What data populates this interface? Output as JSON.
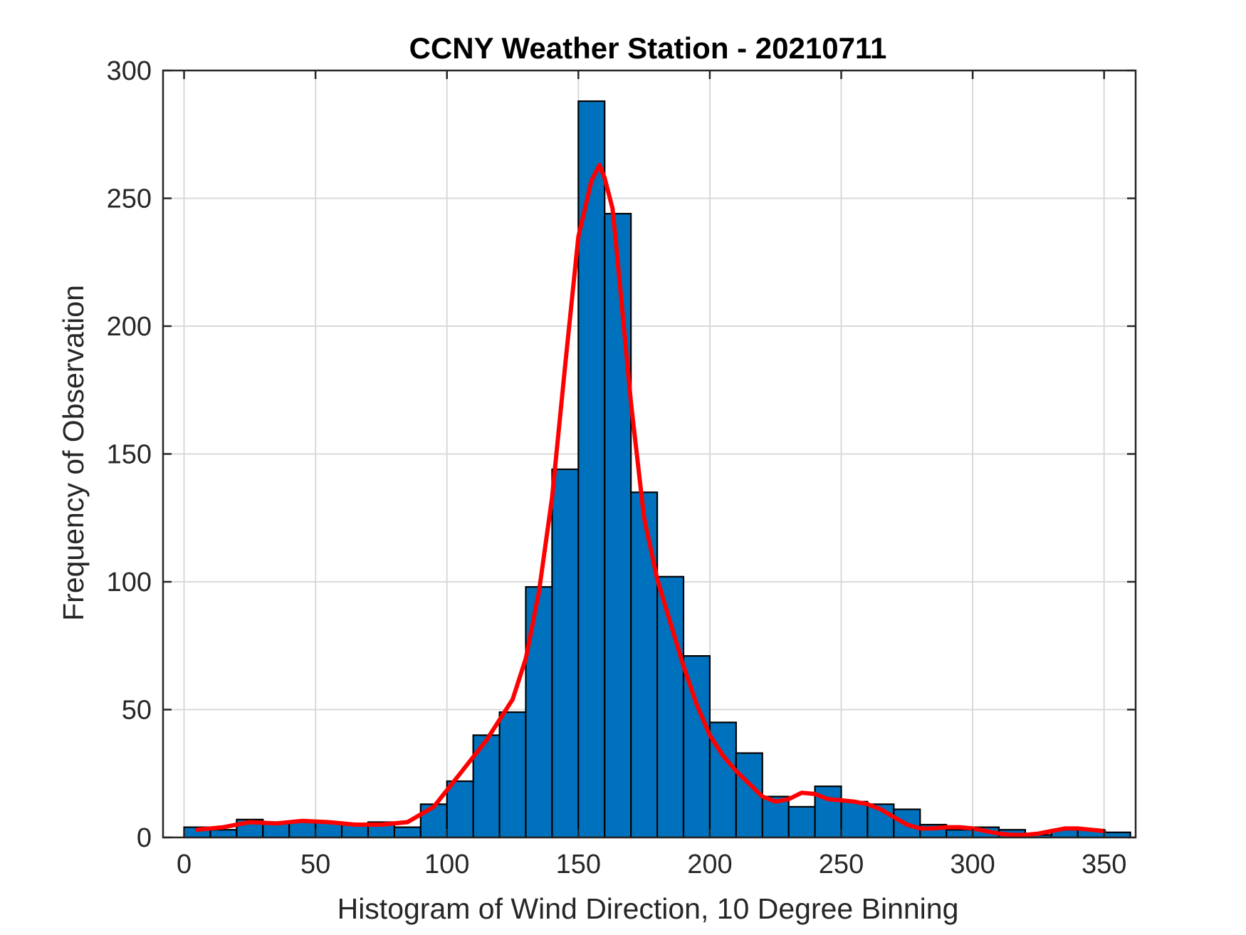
{
  "chart_data": {
    "type": "bar",
    "title": "CCNY Weather Station - 20210711",
    "xlabel": "Histogram of Wind Direction, 10 Degree Binning",
    "ylabel": "Frequency of Observation",
    "xlim": [
      -8,
      362
    ],
    "ylim": [
      0,
      300
    ],
    "grid": true,
    "x_ticks": [
      0,
      50,
      100,
      150,
      200,
      250,
      300,
      350
    ],
    "y_ticks": [
      0,
      50,
      100,
      150,
      200,
      250,
      300
    ],
    "bin_width": 10,
    "bins": [
      {
        "start": 0,
        "value": 4
      },
      {
        "start": 10,
        "value": 3
      },
      {
        "start": 20,
        "value": 7
      },
      {
        "start": 30,
        "value": 6
      },
      {
        "start": 40,
        "value": 6
      },
      {
        "start": 50,
        "value": 6
      },
      {
        "start": 60,
        "value": 5
      },
      {
        "start": 70,
        "value": 6
      },
      {
        "start": 80,
        "value": 4
      },
      {
        "start": 90,
        "value": 13
      },
      {
        "start": 100,
        "value": 22
      },
      {
        "start": 110,
        "value": 40
      },
      {
        "start": 120,
        "value": 49
      },
      {
        "start": 130,
        "value": 98
      },
      {
        "start": 140,
        "value": 144
      },
      {
        "start": 150,
        "value": 288
      },
      {
        "start": 160,
        "value": 244
      },
      {
        "start": 170,
        "value": 135
      },
      {
        "start": 180,
        "value": 102
      },
      {
        "start": 190,
        "value": 71
      },
      {
        "start": 200,
        "value": 45
      },
      {
        "start": 210,
        "value": 33
      },
      {
        "start": 220,
        "value": 16
      },
      {
        "start": 230,
        "value": 12
      },
      {
        "start": 240,
        "value": 20
      },
      {
        "start": 250,
        "value": 14
      },
      {
        "start": 260,
        "value": 13
      },
      {
        "start": 270,
        "value": 11
      },
      {
        "start": 280,
        "value": 5
      },
      {
        "start": 290,
        "value": 3
      },
      {
        "start": 300,
        "value": 4
      },
      {
        "start": 310,
        "value": 3
      },
      {
        "start": 320,
        "value": 1
      },
      {
        "start": 330,
        "value": 3
      },
      {
        "start": 340,
        "value": 3
      },
      {
        "start": 350,
        "value": 2
      }
    ],
    "fit_curve": {
      "x": [
        5,
        15,
        25,
        35,
        45,
        55,
        65,
        75,
        85,
        95,
        105,
        115,
        125,
        130,
        135,
        140,
        145,
        150,
        155,
        158,
        160,
        163,
        165,
        170,
        175,
        180,
        185,
        190,
        195,
        200,
        205,
        210,
        215,
        220,
        225,
        230,
        235,
        240,
        245,
        250,
        255,
        260,
        265,
        270,
        275,
        280,
        285,
        290,
        295,
        300,
        305,
        310,
        315,
        320,
        325,
        330,
        335,
        340,
        345,
        350
      ],
      "y": [
        3,
        4,
        6,
        5.5,
        6.5,
        6,
        5,
        5,
        6,
        12,
        25,
        38,
        54,
        70,
        96,
        133,
        185,
        235,
        257,
        263,
        258,
        246,
        225,
        170,
        125,
        101,
        84,
        67,
        52,
        40,
        32,
        26,
        21,
        16,
        14,
        15,
        17.5,
        17,
        15,
        14.5,
        14,
        13,
        11,
        8,
        5,
        3.5,
        3.5,
        4,
        4,
        3.5,
        2.5,
        1.5,
        1,
        1,
        1.5,
        2.5,
        3.5,
        3.5,
        3,
        2.5
      ],
      "color": "#ff0000"
    },
    "bar_color": "#0072bd",
    "bar_edge_color": "#000000",
    "grid_color": "#d9d9d9"
  }
}
